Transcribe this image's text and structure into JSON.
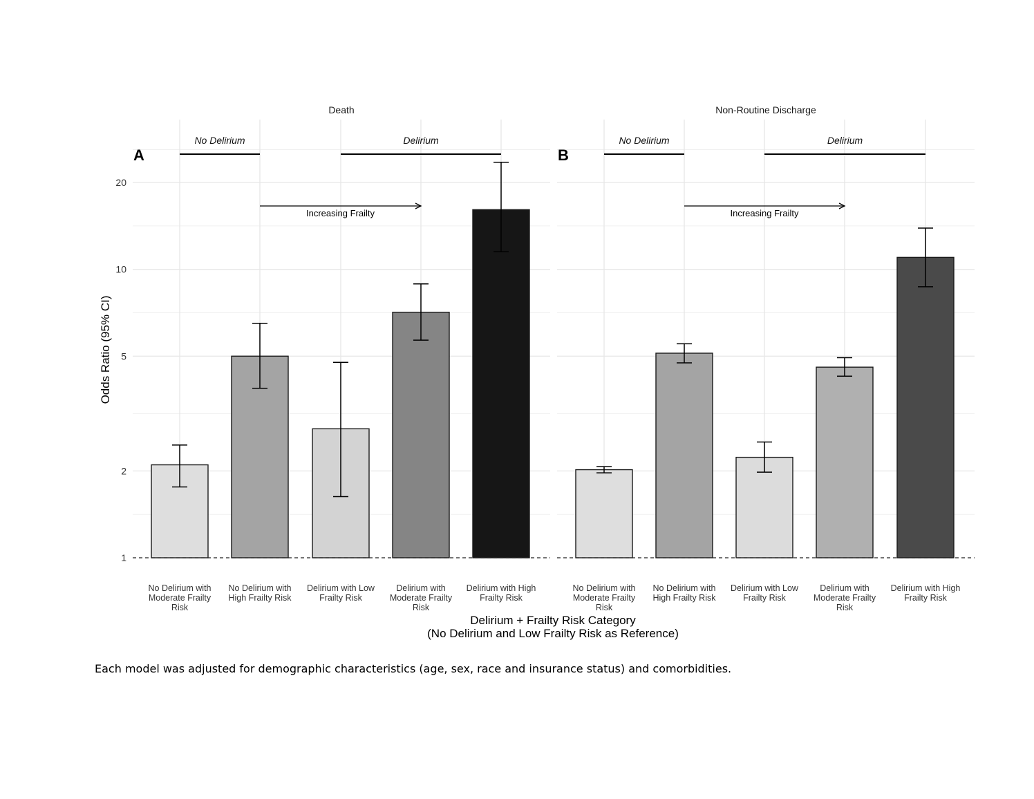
{
  "chart_data": {
    "type": "bar",
    "ylabel": "Odds Ratio (95% CI)",
    "xlabel": [
      "Delirium + Frailty Risk Category",
      "(No Delirium and Low Frailty Risk as Reference)"
    ],
    "y_scale": "log",
    "ylim": [
      1,
      28
    ],
    "yticks": [
      1,
      2,
      5,
      10,
      20
    ],
    "reference_line": 1,
    "grid": true,
    "categories": [
      [
        "No Delirium with",
        "Moderate Frailty",
        "Risk"
      ],
      [
        "No Delirium with",
        "High Frailty Risk"
      ],
      [
        "Delirium with Low",
        "Frailty Risk"
      ],
      [
        "Delirium with",
        "Moderate Frailty",
        "Risk"
      ],
      [
        "Delirium with High",
        "Frailty Risk"
      ]
    ],
    "group_labels": [
      {
        "label": "No Delirium",
        "from": 0,
        "to": 1
      },
      {
        "label": "Delirium",
        "from": 2,
        "to": 4
      }
    ],
    "arrow_label": "Increasing Frailty",
    "panels": [
      {
        "letter": "A",
        "title": "Death",
        "values": [
          2.1,
          5.0,
          2.8,
          7.1,
          16.1
        ],
        "ci_low": [
          1.76,
          3.87,
          1.63,
          5.68,
          11.5
        ],
        "ci_high": [
          2.46,
          6.5,
          4.76,
          8.9,
          23.5
        ],
        "fills": [
          "#dedede",
          "#a4a4a4",
          "#d3d3d3",
          "#858585",
          "#161616"
        ]
      },
      {
        "letter": "B",
        "title": "Non-Routine Discharge",
        "values": [
          2.02,
          5.12,
          2.23,
          4.58,
          11.0
        ],
        "ci_low": [
          1.97,
          4.74,
          1.98,
          4.26,
          8.7
        ],
        "ci_high": [
          2.07,
          5.52,
          2.52,
          4.94,
          13.9
        ],
        "fills": [
          "#dedede",
          "#a4a4a4",
          "#dcdcdc",
          "#b0b0b0",
          "#4a4a4a"
        ]
      }
    ]
  },
  "caption": "Each model was adjusted for demographic characteristics (age, sex, race and insurance status) and comorbidities."
}
